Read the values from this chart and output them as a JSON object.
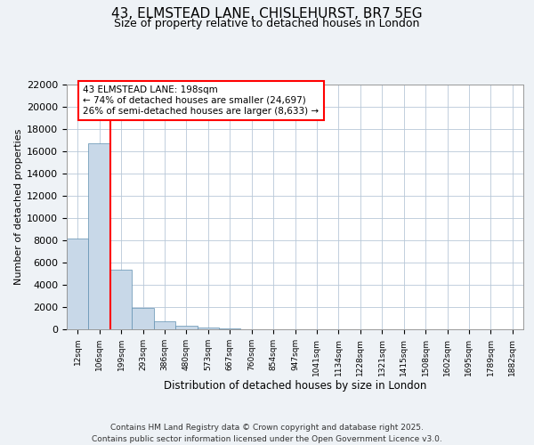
{
  "title_line1": "43, ELMSTEAD LANE, CHISLEHURST, BR7 5EG",
  "title_line2": "Size of property relative to detached houses in London",
  "xlabel": "Distribution of detached houses by size in London",
  "ylabel": "Number of detached properties",
  "categories": [
    "12sqm",
    "106sqm",
    "199sqm",
    "293sqm",
    "386sqm",
    "480sqm",
    "573sqm",
    "667sqm",
    "760sqm",
    "854sqm",
    "947sqm",
    "1041sqm",
    "1134sqm",
    "1228sqm",
    "1321sqm",
    "1415sqm",
    "1508sqm",
    "1602sqm",
    "1695sqm",
    "1789sqm",
    "1882sqm"
  ],
  "values": [
    8200,
    16700,
    5400,
    1900,
    700,
    350,
    180,
    100,
    0,
    0,
    0,
    0,
    0,
    0,
    0,
    0,
    0,
    0,
    0,
    0,
    0
  ],
  "bar_color": "#c8d8e8",
  "bar_edge_color": "#6090b0",
  "red_line_x": 1.5,
  "annotation_text": "43 ELMSTEAD LANE: 198sqm\n← 74% of detached houses are smaller (24,697)\n26% of semi-detached houses are larger (8,633) →",
  "ylim": [
    0,
    22000
  ],
  "yticks": [
    0,
    2000,
    4000,
    6000,
    8000,
    10000,
    12000,
    14000,
    16000,
    18000,
    20000,
    22000
  ],
  "bg_color": "#eef2f6",
  "plot_bg_color": "#ffffff",
  "footer": "Contains HM Land Registry data © Crown copyright and database right 2025.\nContains public sector information licensed under the Open Government Licence v3.0.",
  "title_fontsize": 11,
  "subtitle_fontsize": 9,
  "footer_fontsize": 6.5
}
